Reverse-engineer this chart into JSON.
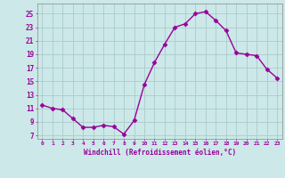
{
  "x": [
    0,
    1,
    2,
    3,
    4,
    5,
    6,
    7,
    8,
    9,
    10,
    11,
    12,
    13,
    14,
    15,
    16,
    17,
    18,
    19,
    20,
    21,
    22,
    23
  ],
  "y": [
    11.5,
    11.0,
    10.8,
    9.5,
    8.2,
    8.2,
    8.5,
    8.3,
    7.2,
    9.2,
    14.5,
    17.8,
    20.5,
    23.0,
    23.5,
    25.0,
    25.3,
    24.0,
    22.5,
    19.2,
    19.0,
    18.8,
    16.8,
    15.5
  ],
  "line_color": "#990099",
  "marker": "D",
  "markersize": 2.5,
  "linewidth": 1.0,
  "bg_color": "#cce8e8",
  "grid_color": "#aacccc",
  "xlabel": "Windchill (Refroidissement éolien,°C)",
  "xlabel_color": "#990099",
  "ylabel_ticks": [
    7,
    9,
    11,
    13,
    15,
    17,
    19,
    21,
    23,
    25
  ],
  "xlim": [
    -0.5,
    23.5
  ],
  "ylim": [
    6.5,
    26.5
  ],
  "xtick_labels": [
    "0",
    "1",
    "2",
    "3",
    "4",
    "5",
    "6",
    "7",
    "8",
    "9",
    "10",
    "11",
    "12",
    "13",
    "14",
    "15",
    "16",
    "17",
    "18",
    "19",
    "20",
    "21",
    "22",
    "23"
  ],
  "tick_color": "#990099",
  "tick_label_color": "#990099",
  "spine_color": "#888888"
}
